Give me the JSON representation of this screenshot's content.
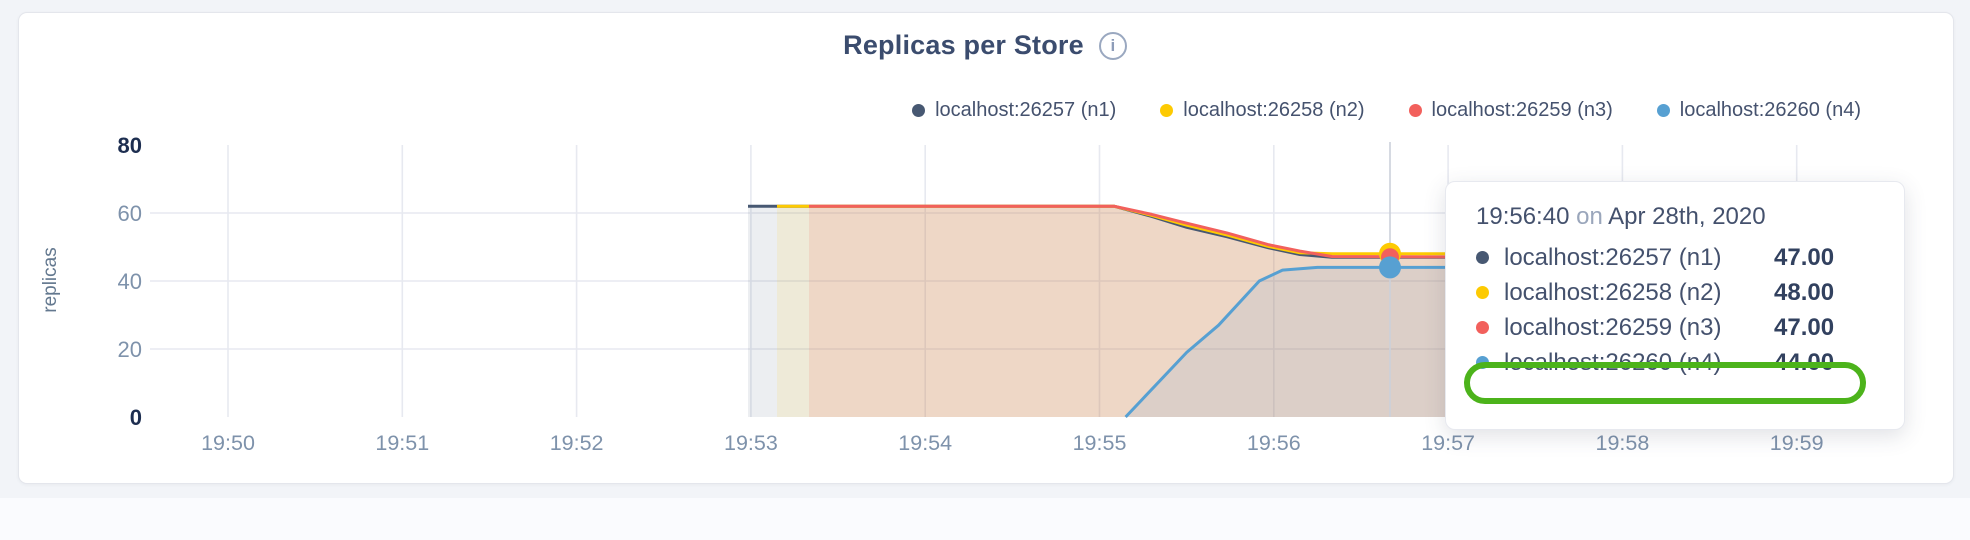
{
  "header": {
    "title": "Replicas per Store",
    "info_icon": "i"
  },
  "colors": {
    "page_bg": "#f2f4f8",
    "card_bg": "#ffffff",
    "grid": "#e7e9f0",
    "crosshair": "#ccd0da",
    "axis_strong": "#1d2e50",
    "axis_muted": "#7e92ab",
    "y_label": "#63788f",
    "annotation_green": "#4cb31b"
  },
  "chart_data": {
    "type": "area",
    "title": "Replicas per Store",
    "ylabel": "replicas",
    "xlabel": "",
    "ylim": [
      0,
      80
    ],
    "x_window": [
      "19:49:35",
      "19:59:37"
    ],
    "grid": "on",
    "legend_position": "top-right",
    "y_ticks": [
      {
        "label": "80",
        "value": 80,
        "strong": true
      },
      {
        "label": "60",
        "value": 60,
        "strong": false
      },
      {
        "label": "40",
        "value": 40,
        "strong": false
      },
      {
        "label": "20",
        "value": 20,
        "strong": false
      },
      {
        "label": "0",
        "value": 0,
        "strong": true
      }
    ],
    "x_ticks": [
      "19:50",
      "19:51",
      "19:52",
      "19:53",
      "19:54",
      "19:55",
      "19:56",
      "19:57",
      "19:58",
      "19:59"
    ],
    "gridline_y_values": [
      20,
      40,
      60
    ],
    "series": [
      {
        "name": "localhost:26257 (n1)",
        "color": "#475872",
        "fill": "rgba(71,88,114,0.10)",
        "points": [
          [
            "19:52:59",
            62
          ],
          [
            "19:55:05",
            62
          ],
          [
            "19:55:18",
            59.0
          ],
          [
            "19:55:30",
            55.8
          ],
          [
            "19:55:44",
            53.0
          ],
          [
            "19:55:58",
            49.8
          ],
          [
            "19:56:09",
            47.8
          ],
          [
            "19:56:20",
            47
          ],
          [
            "19:57:30",
            47
          ]
        ]
      },
      {
        "name": "localhost:26258 (n2)",
        "color": "#fdca02",
        "fill": "rgba(253,202,2,0.10)",
        "points": [
          [
            "19:53:09",
            62
          ],
          [
            "19:55:05",
            62
          ],
          [
            "19:55:18",
            59.3
          ],
          [
            "19:55:30",
            56.4
          ],
          [
            "19:55:44",
            53.5
          ],
          [
            "19:55:58",
            50.2
          ],
          [
            "19:56:09",
            48.3
          ],
          [
            "19:56:20",
            48
          ],
          [
            "19:57:30",
            48
          ]
        ]
      },
      {
        "name": "localhost:26259 (n3)",
        "color": "#f2605c",
        "fill": "rgba(242,96,92,0.14)",
        "points": [
          [
            "19:53:20",
            62
          ],
          [
            "19:55:05",
            62
          ],
          [
            "19:55:18",
            59.6
          ],
          [
            "19:55:30",
            57.0
          ],
          [
            "19:55:44",
            54.1
          ],
          [
            "19:55:58",
            50.7
          ],
          [
            "19:56:09",
            48.8
          ],
          [
            "19:56:20",
            47.2
          ],
          [
            "19:57:30",
            47
          ]
        ]
      },
      {
        "name": "localhost:26260 (n4)",
        "color": "#57a0d2",
        "fill": "rgba(87,160,212,0.12)",
        "points": [
          [
            "19:55:09",
            0
          ],
          [
            "19:55:30",
            19
          ],
          [
            "19:55:41",
            27
          ],
          [
            "19:55:55",
            40
          ],
          [
            "19:56:03",
            43.2
          ],
          [
            "19:56:15",
            44
          ],
          [
            "19:57:30",
            44
          ]
        ]
      }
    ],
    "hover": {
      "time": "19:56:40",
      "values": [
        47,
        48,
        47,
        44
      ],
      "dot_radii": [
        8,
        11,
        9,
        11
      ]
    }
  },
  "tooltip": {
    "time": "19:56:40",
    "sep": "on",
    "date": "Apr 28th, 2020",
    "rows": [
      {
        "name": "localhost:26257 (n1)",
        "value": "47.00",
        "color": "#475872"
      },
      {
        "name": "localhost:26258 (n2)",
        "value": "48.00",
        "color": "#fdca02"
      },
      {
        "name": "localhost:26259 (n3)",
        "value": "47.00",
        "color": "#f2605c"
      },
      {
        "name": "localhost:26260 (n4)",
        "value": "44.00",
        "color": "#57a0d2"
      }
    ],
    "highlighted_row": 3
  }
}
